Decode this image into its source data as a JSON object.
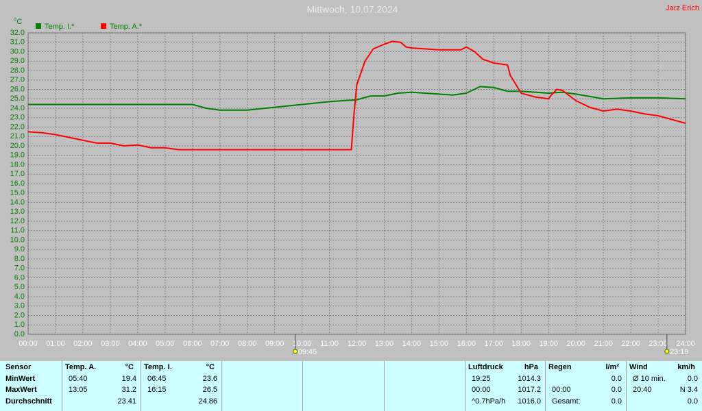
{
  "chart_data": {
    "type": "line",
    "title": "Mittwoch, 10.07.2024",
    "author": "Jarz Erich",
    "y_label": "°C",
    "grid": true,
    "legend": "top-left",
    "xlim": [
      0,
      24
    ],
    "xticks": [
      {
        "value": 0,
        "label": "00:00"
      },
      {
        "value": 1,
        "label": "01:00"
      },
      {
        "value": 2,
        "label": "02:00"
      },
      {
        "value": 3,
        "label": "03:00"
      },
      {
        "value": 4,
        "label": "04:00"
      },
      {
        "value": 5,
        "label": "05:00"
      },
      {
        "value": 6,
        "label": "06:00"
      },
      {
        "value": 7,
        "label": "07:00"
      },
      {
        "value": 8,
        "label": "08:00"
      },
      {
        "value": 9,
        "label": "09:00"
      },
      {
        "value": 10,
        "label": "10:00"
      },
      {
        "value": 11,
        "label": "11:00"
      },
      {
        "value": 12,
        "label": "12:00"
      },
      {
        "value": 13,
        "label": "13:00"
      },
      {
        "value": 14,
        "label": "14:00"
      },
      {
        "value": 15,
        "label": "15:00"
      },
      {
        "value": 16,
        "label": "16:00"
      },
      {
        "value": 17,
        "label": "17:00"
      },
      {
        "value": 18,
        "label": "18:00"
      },
      {
        "value": 19,
        "label": "19:00"
      },
      {
        "value": 20,
        "label": "20:00"
      },
      {
        "value": 21,
        "label": "21:00"
      },
      {
        "value": 22,
        "label": "22:00"
      },
      {
        "value": 23,
        "label": "23:00"
      },
      {
        "value": 24,
        "label": "24:00"
      }
    ],
    "ylim": [
      0,
      32
    ],
    "yticks": [
      {
        "value": 0,
        "label": "0.0"
      },
      {
        "value": 1,
        "label": "1.0"
      },
      {
        "value": 2,
        "label": "2.0"
      },
      {
        "value": 3,
        "label": "3.0"
      },
      {
        "value": 4,
        "label": "4.0"
      },
      {
        "value": 5,
        "label": "5.0"
      },
      {
        "value": 6,
        "label": "6.0"
      },
      {
        "value": 7,
        "label": "7.0"
      },
      {
        "value": 8,
        "label": "8.0"
      },
      {
        "value": 9,
        "label": "9.0"
      },
      {
        "value": 10,
        "label": "10.0"
      },
      {
        "value": 11,
        "label": "11.0"
      },
      {
        "value": 12,
        "label": "12.0"
      },
      {
        "value": 13,
        "label": "13.0"
      },
      {
        "value": 14,
        "label": "14.0"
      },
      {
        "value": 15,
        "label": "15.0"
      },
      {
        "value": 16,
        "label": "16.0"
      },
      {
        "value": 17,
        "label": "17.0"
      },
      {
        "value": 18,
        "label": "18.0"
      },
      {
        "value": 19,
        "label": "19.0"
      },
      {
        "value": 20,
        "label": "20.0"
      },
      {
        "value": 21,
        "label": "21.0"
      },
      {
        "value": 22,
        "label": "22.0"
      },
      {
        "value": 23,
        "label": "23.0"
      },
      {
        "value": 24,
        "label": "24.0"
      },
      {
        "value": 25,
        "label": "25.0"
      },
      {
        "value": 26,
        "label": "26.0"
      },
      {
        "value": 27,
        "label": "27.0"
      },
      {
        "value": 28,
        "label": "28.0"
      },
      {
        "value": 29,
        "label": "29.0"
      },
      {
        "value": 30,
        "label": "30.0"
      },
      {
        "value": 31,
        "label": "31.0"
      },
      {
        "value": 32,
        "label": "32.0"
      }
    ],
    "annotations": [
      {
        "value": 9.75,
        "label": "09:45"
      },
      {
        "value": 23.32,
        "label": "23:19"
      }
    ],
    "series": [
      {
        "name": "Temp. I.*",
        "color": "#008000",
        "x": [
          0,
          6,
          6.5,
          7,
          8,
          9,
          10,
          11,
          12,
          12.5,
          13,
          13.5,
          14,
          15,
          15.5,
          16,
          16.5,
          17,
          17.5,
          18,
          19,
          19.5,
          20,
          21,
          22,
          23,
          24
        ],
        "values": [
          24.4,
          24.4,
          24.0,
          23.8,
          23.8,
          24.1,
          24.4,
          24.7,
          24.9,
          25.3,
          25.3,
          25.6,
          25.7,
          25.5,
          25.4,
          25.6,
          26.3,
          26.2,
          25.8,
          25.8,
          25.6,
          25.7,
          25.5,
          25.0,
          25.1,
          25.1,
          25.0
        ]
      },
      {
        "name": "Temp. A.*",
        "color": "#ff0000",
        "x": [
          0,
          0.5,
          1,
          2,
          2.5,
          3,
          3.5,
          4,
          4.5,
          5,
          5.5,
          6,
          11.8,
          11.9,
          12,
          12.3,
          12.6,
          13,
          13.3,
          13.6,
          13.8,
          14,
          15,
          15.8,
          16,
          16.3,
          16.6,
          17,
          17.5,
          17.6,
          18,
          18.5,
          19,
          19.1,
          19.3,
          19.5,
          20,
          20.5,
          21,
          21.5,
          22,
          22.5,
          23,
          23.5,
          24
        ],
        "values": [
          21.5,
          21.4,
          21.2,
          20.6,
          20.3,
          20.3,
          20.0,
          20.1,
          19.8,
          19.8,
          19.6,
          19.6,
          19.6,
          23.5,
          26.5,
          29.0,
          30.3,
          30.8,
          31.1,
          31.0,
          30.5,
          30.4,
          30.2,
          30.2,
          30.5,
          30.0,
          29.2,
          28.8,
          28.6,
          27.5,
          25.6,
          25.2,
          25.0,
          25.4,
          26.0,
          25.9,
          24.8,
          24.1,
          23.7,
          23.9,
          23.7,
          23.4,
          23.2,
          22.8,
          22.4
        ]
      }
    ]
  },
  "table": {
    "labels": [
      "Sensor",
      "MinWert",
      "MaxWert",
      "Durchschnitt"
    ],
    "panels": [
      {
        "name": "Temp. A.",
        "unit": "°C",
        "rows": [
          [
            "05:40",
            "19.4"
          ],
          [
            "13:05",
            "31.2"
          ],
          [
            null,
            "23.41"
          ]
        ]
      },
      {
        "name": "Temp. I.",
        "unit": "°C",
        "rows": [
          [
            "06:45",
            "23.6"
          ],
          [
            "16:15",
            "26.5"
          ],
          [
            null,
            "24.86"
          ]
        ]
      },
      {
        "name": "Luftdruck",
        "unit": "hPa",
        "rows": [
          [
            "19:25",
            "1014.3"
          ],
          [
            "00:00",
            "1017.2"
          ],
          [
            "^0.7hPa/h",
            "1016.0"
          ]
        ]
      },
      {
        "name": "Regen",
        "unit": "l/m²",
        "rows": [
          [
            null,
            "0.0"
          ],
          [
            "00:00",
            "0.0"
          ],
          [
            "Gesamt:",
            "0.0"
          ]
        ]
      },
      {
        "name": "Wind",
        "unit": "km/h",
        "rows": [
          [
            "Ø 10 min.",
            "0.0"
          ],
          [
            "20:40",
            "N 3.4"
          ],
          [
            null,
            "0.0"
          ]
        ]
      }
    ]
  }
}
